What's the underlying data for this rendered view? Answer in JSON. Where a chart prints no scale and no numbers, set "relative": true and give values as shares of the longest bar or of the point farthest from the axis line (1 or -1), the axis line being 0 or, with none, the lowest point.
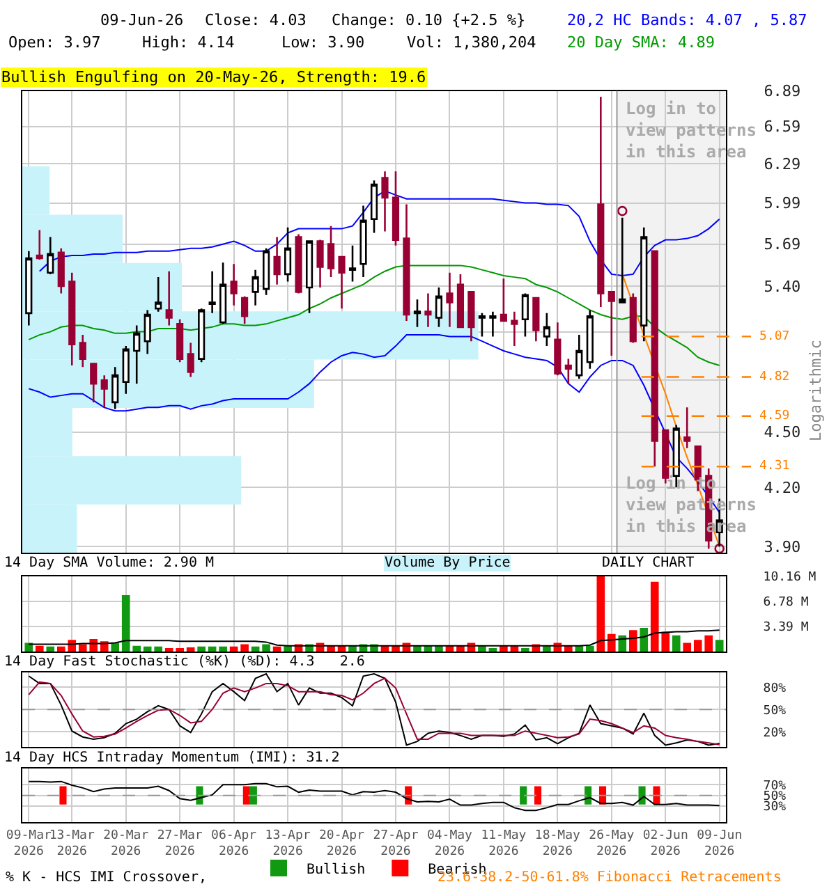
{
  "chart_data": [
    {
      "type": "candlestick",
      "title": "Bullish Engulfing on 20-May-26, Strength: 19.6",
      "ylabel": "Logarithmic",
      "log": "y",
      "grid": true,
      "tick_labels": "y",
      "annotations": [
        "09-Jun-26",
        "Close: 4.03",
        "Change: 0.10 {+2.5 %}",
        "Open: 3.97",
        "High: 4.14",
        "Low: 3.90",
        "Vol: 1,380,204",
        "20,2 HC Bands: 4.07 , 5.87",
        "20 Day SMA: 4.89",
        "Log in to\nview patterns\nin this area",
        "Log in to\nview patterns\nin this area"
      ],
      "categories": [
        "09-Mar\n2026",
        null,
        null,
        null,
        "13-Mar\n2026",
        null,
        null,
        null,
        null,
        "20-Mar\n2026",
        null,
        null,
        null,
        null,
        "27-Mar\n2026",
        null,
        null,
        null,
        null,
        "06-Apr\n2026",
        null,
        null,
        null,
        null,
        "13-Apr\n2026",
        null,
        null,
        null,
        null,
        "20-Apr\n2026",
        null,
        null,
        null,
        null,
        "27-Apr\n2026",
        null,
        null,
        null,
        null,
        "04-May\n2026",
        null,
        null,
        null,
        null,
        "11-May\n2026",
        null,
        null,
        null,
        null,
        "18-May\n2026",
        null,
        null,
        null,
        null,
        "26-May\n2026",
        null,
        null,
        null,
        null,
        "02-Jun\n2026",
        null,
        null,
        null,
        null,
        "09-Jun\n2026"
      ],
      "ohlc": [
        [
          5.22,
          5.64,
          5.14,
          5.59
        ],
        [
          5.61,
          5.79,
          5.58,
          5.59
        ],
        [
          5.49,
          5.74,
          5.48,
          5.62
        ],
        [
          5.63,
          5.66,
          5.35,
          5.4
        ],
        [
          5.43,
          5.49,
          4.89,
          5.02
        ],
        [
          5.03,
          5.08,
          4.88,
          4.93
        ],
        [
          4.9,
          4.9,
          4.67,
          4.78
        ],
        [
          4.8,
          4.83,
          4.64,
          4.75
        ],
        [
          4.67,
          4.88,
          4.63,
          4.83
        ],
        [
          4.79,
          5.01,
          4.72,
          4.99
        ],
        [
          4.98,
          5.14,
          4.78,
          5.09
        ],
        [
          5.04,
          5.24,
          4.96,
          5.21
        ],
        [
          5.25,
          5.46,
          5.23,
          5.29
        ],
        [
          5.24,
          5.5,
          5.14,
          5.19
        ],
        [
          5.15,
          5.18,
          4.91,
          4.93
        ],
        [
          4.96,
          5.03,
          4.82,
          4.85
        ],
        [
          4.93,
          5.25,
          4.91,
          5.24
        ],
        [
          5.28,
          5.5,
          5.22,
          5.29
        ],
        [
          5.16,
          5.56,
          5.15,
          5.41
        ],
        [
          5.43,
          5.55,
          5.27,
          5.35
        ],
        [
          5.32,
          5.33,
          5.15,
          5.2
        ],
        [
          5.36,
          5.51,
          5.27,
          5.46
        ],
        [
          5.38,
          5.66,
          5.34,
          5.64
        ],
        [
          5.6,
          5.74,
          5.41,
          5.48
        ],
        [
          5.48,
          5.81,
          5.43,
          5.66
        ],
        [
          5.74,
          5.76,
          5.35,
          5.36
        ],
        [
          5.39,
          5.71,
          5.22,
          5.71
        ],
        [
          5.71,
          5.72,
          5.39,
          5.53
        ],
        [
          5.69,
          5.82,
          5.46,
          5.52
        ],
        [
          5.6,
          5.6,
          5.25,
          5.49
        ],
        [
          5.51,
          5.68,
          5.43,
          5.52
        ],
        [
          5.55,
          5.97,
          5.46,
          5.86
        ],
        [
          5.87,
          6.16,
          5.77,
          6.13
        ],
        [
          6.18,
          6.23,
          5.78,
          6.03
        ],
        [
          6.03,
          6.23,
          5.68,
          5.72
        ],
        [
          5.73,
          5.98,
          5.17,
          5.21
        ],
        [
          5.22,
          5.31,
          5.13,
          5.23
        ],
        [
          5.23,
          5.35,
          5.13,
          5.21
        ],
        [
          5.19,
          5.39,
          5.13,
          5.33
        ],
        [
          5.35,
          5.49,
          5.13,
          5.29
        ],
        [
          5.41,
          5.48,
          5.13,
          5.13
        ],
        [
          5.36,
          5.36,
          5.04,
          5.13
        ],
        [
          5.19,
          5.22,
          5.07,
          5.2
        ],
        [
          5.19,
          5.23,
          5.07,
          5.2
        ],
        [
          5.21,
          5.45,
          5.17,
          5.17
        ],
        [
          5.17,
          5.23,
          5.01,
          5.15
        ],
        [
          5.18,
          5.35,
          5.07,
          5.34
        ],
        [
          5.32,
          5.32,
          5.04,
          5.11
        ],
        [
          5.07,
          5.22,
          5.01,
          5.13
        ],
        [
          5.05,
          5.16,
          4.83,
          4.84
        ],
        [
          4.89,
          4.93,
          4.78,
          4.87
        ],
        [
          4.83,
          5.08,
          4.81,
          4.98
        ],
        [
          4.91,
          5.24,
          4.87,
          5.2
        ],
        [
          5.98,
          6.84,
          5.26,
          5.35
        ],
        [
          5.36,
          5.36,
          4.95,
          5.3
        ],
        [
          5.29,
          5.88,
          5.29,
          5.31
        ],
        [
          5.32,
          5.35,
          5.03,
          5.04
        ],
        [
          5.14,
          5.81,
          5.04,
          5.74
        ],
        [
          5.64,
          5.64,
          4.31,
          4.45
        ],
        [
          4.51,
          4.51,
          4.22,
          4.25
        ],
        [
          4.26,
          4.54,
          4.2,
          4.52
        ],
        [
          4.47,
          4.64,
          4.41,
          4.45
        ],
        [
          4.42,
          4.42,
          4.18,
          4.24
        ],
        [
          4.26,
          4.3,
          3.89,
          3.93
        ],
        [
          3.97,
          4.14,
          3.9,
          4.03
        ]
      ],
      "series": [
        {
          "type": "line",
          "color": "#0000ff",
          "values": [
            null,
            5.5,
            5.57,
            5.6,
            5.61,
            5.61,
            5.62,
            5.62,
            5.63,
            5.63,
            5.63,
            5.64,
            5.64,
            5.64,
            5.65,
            5.66,
            5.66,
            5.67,
            5.69,
            5.71,
            5.68,
            5.64,
            5.64,
            5.69,
            5.77,
            5.8,
            5.8,
            5.8,
            5.8,
            5.8,
            5.82,
            5.92,
            6.03,
            6.08,
            6.05,
            6.02,
            6.02,
            6.02,
            6.02,
            6.02,
            6.02,
            6.02,
            6.02,
            6.02,
            6.01,
            6.0,
            5.99,
            5.99,
            5.98,
            5.98,
            5.97,
            5.89,
            5.71,
            5.58,
            5.48,
            5.47,
            5.48,
            5.6,
            5.68,
            5.72,
            5.72,
            5.73,
            5.75,
            5.8,
            5.87
          ]
        },
        {
          "type": "line",
          "color": "#009900",
          "values": [
            5.05,
            5.08,
            5.1,
            5.13,
            5.14,
            5.14,
            5.12,
            5.11,
            5.09,
            5.09,
            5.1,
            5.1,
            5.12,
            5.12,
            5.12,
            5.11,
            5.12,
            5.13,
            5.15,
            5.15,
            5.14,
            5.14,
            5.15,
            5.17,
            5.19,
            5.21,
            5.25,
            5.28,
            5.32,
            5.35,
            5.38,
            5.41,
            5.46,
            5.5,
            5.53,
            5.54,
            5.54,
            5.54,
            5.54,
            5.54,
            5.54,
            5.53,
            5.51,
            5.49,
            5.47,
            5.46,
            5.45,
            5.41,
            5.39,
            5.36,
            5.32,
            5.28,
            5.24,
            5.21,
            5.19,
            5.18,
            5.2,
            5.2,
            5.13,
            5.08,
            5.04,
            5.0,
            4.94,
            4.91,
            4.89
          ]
        },
        {
          "type": "line",
          "color": "#0000ff",
          "values": [
            4.75,
            4.73,
            4.7,
            4.71,
            4.72,
            4.72,
            4.68,
            4.64,
            4.62,
            4.62,
            4.63,
            4.64,
            4.64,
            4.65,
            4.65,
            4.63,
            4.65,
            4.66,
            4.68,
            4.69,
            4.69,
            4.69,
            4.69,
            4.69,
            4.69,
            4.73,
            4.78,
            4.85,
            4.91,
            4.95,
            4.97,
            4.96,
            4.94,
            4.95,
            5.01,
            5.08,
            5.08,
            5.08,
            5.08,
            5.07,
            5.07,
            5.07,
            5.04,
            5.01,
            4.98,
            4.96,
            4.94,
            4.93,
            4.92,
            4.88,
            4.78,
            4.73,
            4.82,
            4.89,
            4.92,
            4.92,
            4.89,
            4.77,
            null,
            null,
            4.36,
            4.3,
            4.23,
            4.15,
            4.07
          ]
        },
        {
          "type": "line",
          "color": "#ff8000",
          "values": [
            null,
            null,
            null,
            null,
            null,
            null,
            null,
            null,
            null,
            null,
            null,
            null,
            null,
            null,
            null,
            null,
            null,
            null,
            null,
            null,
            null,
            null,
            null,
            null,
            null,
            null,
            null,
            null,
            null,
            null,
            null,
            null,
            null,
            null,
            null,
            null,
            null,
            null,
            null,
            null,
            null,
            null,
            null,
            null,
            null,
            null,
            null,
            null,
            null,
            null,
            null,
            null,
            null,
            null,
            null,
            5.48,
            null,
            5.08,
            null,
            4.72,
            4.53,
            4.36,
            4.21,
            null,
            3.9
          ]
        },
        {
          "type": "scatter",
          "marker": "circle",
          "color": "#990033",
          "values": [
            null,
            null,
            null,
            null,
            null,
            null,
            null,
            null,
            null,
            null,
            null,
            null,
            null,
            null,
            null,
            null,
            null,
            null,
            null,
            null,
            null,
            null,
            null,
            null,
            null,
            null,
            null,
            null,
            null,
            null,
            null,
            null,
            null,
            null,
            null,
            null,
            null,
            null,
            null,
            null,
            null,
            null,
            null,
            null,
            null,
            null,
            null,
            null,
            null,
            null,
            null,
            null,
            null,
            null,
            null,
            5.93,
            null,
            null,
            null,
            null,
            null,
            null,
            null,
            null,
            3.89
          ]
        }
      ],
      "ylim": [
        3.87,
        6.89
      ],
      "yticks": [
        {
          "value": 3.9,
          "label": "3.90"
        },
        {
          "value": 4.2,
          "label": "4.20"
        },
        {
          "value": 4.5,
          "label": "4.50"
        },
        {
          "value": 4.8,
          "label": null
        },
        {
          "value": 5.1,
          "label": null
        },
        {
          "value": 5.4,
          "label": "5.40"
        },
        {
          "value": 5.69,
          "label": "5.69"
        },
        {
          "value": 5.99,
          "label": "5.99"
        },
        {
          "value": 6.29,
          "label": "6.29"
        },
        {
          "value": 6.59,
          "label": "6.59"
        },
        {
          "value": 6.89,
          "label": "6.89"
        }
      ],
      "ref_lines": [
        {
          "axis": "y",
          "value": 5.07,
          "label": "5.07",
          "color": "#ff8000",
          "line_style": "dashed"
        },
        {
          "axis": "y",
          "value": 4.82,
          "label": "4.82",
          "color": "#ff8000",
          "line_style": "dashed"
        },
        {
          "axis": "y",
          "value": 4.59,
          "label": "4.59",
          "color": "#ff8000",
          "line_style": "dashed"
        },
        {
          "axis": "y",
          "value": 4.31,
          "label": "4.31",
          "color": "#ff8000",
          "line_style": "dashed"
        }
      ],
      "bands": [
        {
          "axis": "x",
          "from": "26-May\n2026",
          "to": "09-Jun\n2026",
          "color": "#f2f2f2"
        }
      ]
    },
    {
      "type": "bar",
      "title": "Volume By Price",
      "orientation": "horizontal",
      "relative": true,
      "color": "#c9f3fb",
      "categories": [
        null,
        null,
        null,
        null,
        null,
        null,
        null,
        null
      ],
      "values": [
        0.06,
        0.22,
        0.35,
        1.0,
        0.64,
        0.11,
        0.48,
        0.12
      ]
    },
    {
      "type": "bar",
      "title": "14 Day SMA Volume: 2.90 M",
      "grid": true,
      "tick_labels": "y",
      "annotations": [
        "DAILY CHART"
      ],
      "categories": [
        "09-Mar\n2026",
        null,
        null,
        null,
        "13-Mar\n2026",
        null,
        null,
        null,
        null,
        "20-Mar\n2026",
        null,
        null,
        null,
        null,
        "27-Mar\n2026",
        null,
        null,
        null,
        null,
        "06-Apr\n2026",
        null,
        null,
        null,
        null,
        "13-Apr\n2026",
        null,
        null,
        null,
        null,
        "20-Apr\n2026",
        null,
        null,
        null,
        null,
        "27-Apr\n2026",
        null,
        null,
        null,
        null,
        "04-May\n2026",
        null,
        null,
        null,
        null,
        "11-May\n2026",
        null,
        null,
        null,
        null,
        "18-May\n2026",
        null,
        null,
        null,
        null,
        "26-May\n2026",
        null,
        null,
        null,
        null,
        "02-Jun\n2026",
        null,
        null,
        null,
        null,
        "09-Jun\n2026"
      ],
      "series": [
        {
          "type": "bar",
          "values": [
            1.2,
            0.8,
            0.7,
            0.7,
            1.6,
            1.0,
            1.7,
            1.4,
            1.2,
            7.6,
            0.8,
            0.7,
            0.7,
            0.5,
            0.5,
            0.6,
            0.7,
            0.7,
            0.7,
            0.7,
            1.0,
            0.7,
            1.0,
            0.7,
            0.8,
            1.0,
            1.0,
            1.2,
            0.8,
            0.8,
            0.8,
            1.0,
            1.0,
            0.8,
            0.8,
            1.2,
            0.8,
            0.8,
            0.8,
            0.8,
            0.8,
            1.2,
            0.8,
            0.5,
            0.8,
            0.8,
            0.5,
            1.0,
            0.8,
            1.2,
            0.8,
            0.8,
            0.8,
            10.16,
            2.4,
            2.2,
            2.9,
            3.2,
            9.4,
            2.7,
            2.2,
            1.2,
            1.6,
            2.2,
            1.6
          ],
          "colors": [
            "#119911",
            "#ff0000",
            "#119911",
            "#ff0000",
            "#ff0000",
            "#ff0000",
            "#ff0000",
            "#ff0000",
            "#119911",
            "#119911",
            "#119911",
            "#119911",
            "#119911",
            "#ff0000",
            "#ff0000",
            "#ff0000",
            "#119911",
            "#119911",
            "#119911",
            "#ff0000",
            "#ff0000",
            "#119911",
            "#119911",
            "#ff0000",
            "#119911",
            "#ff0000",
            "#119911",
            "#ff0000",
            "#ff0000",
            "#ff0000",
            "#119911",
            "#119911",
            "#119911",
            "#ff0000",
            "#ff0000",
            "#ff0000",
            "#119911",
            "#119911",
            "#119911",
            "#ff0000",
            "#ff0000",
            "#ff0000",
            "#119911",
            "#119911",
            "#ff0000",
            "#ff0000",
            "#119911",
            "#ff0000",
            "#119911",
            "#ff0000",
            "#ff0000",
            "#119911",
            "#119911",
            "#ff0000",
            "#ff0000",
            "#119911",
            "#ff0000",
            "#119911",
            "#ff0000",
            "#ff0000",
            "#119911",
            "#ff0000",
            "#ff0000",
            "#ff0000",
            "#119911"
          ]
        },
        {
          "type": "line",
          "color": "#000000",
          "values": [
            1.0,
            1.0,
            1.0,
            1.0,
            1.0,
            1.1,
            1.1,
            1.1,
            1.2,
            1.5,
            1.5,
            1.5,
            1.5,
            1.5,
            1.4,
            1.4,
            1.4,
            1.4,
            1.4,
            1.4,
            1.4,
            1.4,
            1.3,
            0.9,
            0.8,
            0.8,
            0.8,
            0.8,
            0.8,
            0.8,
            0.8,
            0.8,
            0.8,
            0.8,
            0.8,
            0.8,
            0.8,
            0.8,
            0.8,
            0.8,
            0.8,
            0.8,
            0.8,
            0.8,
            0.8,
            0.8,
            0.8,
            0.8,
            0.8,
            0.8,
            0.8,
            0.8,
            0.9,
            1.5,
            1.6,
            1.7,
            1.8,
            2.0,
            2.5,
            2.6,
            2.7,
            2.7,
            2.8,
            2.8,
            2.9
          ]
        }
      ],
      "ylim": [
        0,
        10.16
      ],
      "yticks": [
        {
          "value": 3.39,
          "label": "3.39 M"
        },
        {
          "value": 6.78,
          "label": "6.78 M"
        },
        {
          "value": 10.16,
          "label": "10.16 M"
        }
      ]
    },
    {
      "type": "line",
      "title": "14 Day Fast Stochastic (%K) (%D): 4.3   2.6",
      "grid": true,
      "tick_labels": "y",
      "categories": [
        "09-Mar\n2026",
        null,
        null,
        null,
        "13-Mar\n2026",
        null,
        null,
        null,
        null,
        "20-Mar\n2026",
        null,
        null,
        null,
        null,
        "27-Mar\n2026",
        null,
        null,
        null,
        null,
        "06-Apr\n2026",
        null,
        null,
        null,
        null,
        "13-Apr\n2026",
        null,
        null,
        null,
        null,
        "20-Apr\n2026",
        null,
        null,
        null,
        null,
        "27-Apr\n2026",
        null,
        null,
        null,
        null,
        "04-May\n2026",
        null,
        null,
        null,
        null,
        "11-May\n2026",
        null,
        null,
        null,
        null,
        "18-May\n2026",
        null,
        null,
        null,
        null,
        "26-May\n2026",
        null,
        null,
        null,
        null,
        "02-Jun\n2026",
        null,
        null,
        null,
        null,
        "09-Jun\n2026"
      ],
      "series": [
        {
          "color": "#000000",
          "values": [
            95,
            85,
            85,
            56,
            21,
            13,
            10,
            12,
            18,
            31,
            37,
            47,
            55,
            50,
            28,
            19,
            44,
            74,
            85,
            74,
            62,
            92,
            98,
            74,
            85,
            56,
            79,
            72,
            72,
            66,
            55,
            95,
            98,
            92,
            60,
            2,
            7,
            18,
            21,
            19,
            15,
            10,
            15,
            15,
            14,
            17,
            29,
            9,
            12,
            4,
            12,
            18,
            56,
            31,
            28,
            25,
            17,
            45,
            15,
            2,
            5,
            9,
            7,
            2,
            4.3
          ]
        },
        {
          "color": "#990033",
          "values": [
            70,
            87,
            85,
            69,
            44,
            21,
            13,
            14,
            17,
            25,
            34,
            42,
            49,
            50,
            42,
            32,
            34,
            50,
            72,
            79,
            74,
            79,
            85,
            85,
            82,
            74,
            74,
            74,
            70,
            69,
            63,
            72,
            85,
            92,
            79,
            44,
            10,
            10,
            18,
            18,
            18,
            15,
            15,
            15,
            15,
            15,
            21,
            18,
            15,
            12,
            13,
            17,
            37,
            35,
            31,
            25,
            19,
            28,
            25,
            15,
            12,
            10,
            7,
            5,
            2.6
          ]
        }
      ],
      "ylim": [
        0,
        100
      ],
      "yticks": [
        {
          "value": 20,
          "label": "20%"
        },
        {
          "value": 50,
          "label": "50%"
        },
        {
          "value": 80,
          "label": "80%"
        }
      ],
      "ref_lines": [
        {
          "axis": "y",
          "value": 50,
          "color": "#999999",
          "line_style": "dashed"
        }
      ]
    },
    {
      "type": "line",
      "title": "14 Day HCS Intraday Momentum (IMI): 31.2",
      "grid": true,
      "legend": "bottom left",
      "annotations": [
        "% K - HCS IMI Crossover,",
        "23.6-38.2-50-61.8% Fibonacci Retracements"
      ],
      "categories": [
        "09-Mar\n2026",
        null,
        null,
        null,
        "13-Mar\n2026",
        null,
        null,
        null,
        null,
        "20-Mar\n2026",
        null,
        null,
        null,
        null,
        "27-Mar\n2026",
        null,
        null,
        null,
        null,
        "06-Apr\n2026",
        null,
        null,
        null,
        null,
        "13-Apr\n2026",
        null,
        null,
        null,
        null,
        "20-Apr\n2026",
        null,
        null,
        null,
        null,
        "27-Apr\n2026",
        null,
        null,
        null,
        null,
        "04-May\n2026",
        null,
        null,
        null,
        null,
        "11-May\n2026",
        null,
        null,
        null,
        null,
        "18-May\n2026",
        null,
        null,
        null,
        null,
        "26-May\n2026",
        null,
        null,
        null,
        null,
        "02-Jun\n2026",
        null,
        null,
        null,
        null,
        "09-Jun\n2026"
      ],
      "series": [
        {
          "type": "bar",
          "name": "Bullish",
          "color": "#119911",
          "values": [
            null,
            null,
            null,
            null,
            null,
            null,
            null,
            null,
            null,
            null,
            null,
            null,
            null,
            null,
            null,
            null,
            34,
            null,
            null,
            null,
            null,
            34,
            null,
            null,
            null,
            null,
            null,
            null,
            null,
            null,
            null,
            null,
            null,
            null,
            null,
            null,
            null,
            null,
            null,
            null,
            null,
            null,
            null,
            null,
            null,
            null,
            34,
            null,
            null,
            null,
            null,
            null,
            34,
            null,
            null,
            null,
            null,
            34,
            null,
            null,
            null,
            null,
            null,
            null,
            null
          ],
          "base": [
            null,
            null,
            null,
            null,
            null,
            null,
            null,
            null,
            null,
            null,
            null,
            null,
            null,
            null,
            null,
            null,
            33,
            null,
            null,
            null,
            null,
            33,
            null,
            null,
            null,
            null,
            null,
            null,
            null,
            null,
            null,
            null,
            null,
            null,
            null,
            null,
            null,
            null,
            null,
            null,
            null,
            null,
            null,
            null,
            null,
            null,
            33,
            null,
            null,
            null,
            null,
            null,
            33,
            null,
            null,
            null,
            null,
            33,
            null,
            null,
            null,
            null,
            null,
            null,
            null
          ]
        },
        {
          "type": "bar",
          "name": "Bearish",
          "color": "#ff0000",
          "values": [
            null,
            null,
            null,
            34,
            null,
            null,
            null,
            null,
            null,
            null,
            null,
            null,
            null,
            null,
            null,
            null,
            null,
            null,
            null,
            null,
            34,
            null,
            null,
            null,
            null,
            null,
            null,
            null,
            null,
            null,
            null,
            null,
            null,
            null,
            null,
            34,
            null,
            null,
            null,
            null,
            null,
            null,
            null,
            null,
            null,
            null,
            null,
            34,
            null,
            null,
            null,
            null,
            null,
            34,
            null,
            null,
            null,
            null,
            34,
            null,
            null,
            null,
            null,
            null,
            null
          ],
          "base": [
            null,
            null,
            null,
            33,
            null,
            null,
            null,
            null,
            null,
            null,
            null,
            null,
            null,
            null,
            null,
            null,
            null,
            null,
            null,
            null,
            33,
            null,
            null,
            null,
            null,
            null,
            null,
            null,
            null,
            null,
            null,
            null,
            null,
            null,
            null,
            33,
            null,
            null,
            null,
            null,
            null,
            null,
            null,
            null,
            null,
            null,
            null,
            33,
            null,
            null,
            null,
            null,
            null,
            33,
            null,
            null,
            null,
            null,
            33,
            null,
            null,
            null,
            null,
            null,
            null
          ]
        },
        {
          "type": "line",
          "color": "#000000",
          "values": [
            76,
            76,
            75,
            76,
            69,
            64,
            57,
            62,
            64,
            64,
            64,
            64,
            67,
            59,
            44,
            41,
            46,
            51,
            70,
            70,
            70,
            72,
            72,
            66,
            67,
            56,
            60,
            58,
            58,
            58,
            51,
            57,
            56,
            59,
            56,
            44,
            38,
            39,
            38,
            43,
            32,
            32,
            35,
            37,
            37,
            27,
            22,
            22,
            27,
            33,
            33,
            40,
            46,
            35,
            35,
            37,
            32,
            48,
            33,
            33,
            35,
            32,
            32,
            32,
            31.2
          ]
        }
      ],
      "ylim": [
        0,
        100
      ],
      "yticks": [
        {
          "value": 30,
          "label": "30%"
        },
        {
          "value": 50,
          "label": "50%"
        },
        {
          "value": 70,
          "label": "70%"
        }
      ],
      "ref_lines": [
        {
          "axis": "y",
          "value": 50,
          "color": "#999999",
          "line_style": "dashed"
        }
      ]
    }
  ]
}
